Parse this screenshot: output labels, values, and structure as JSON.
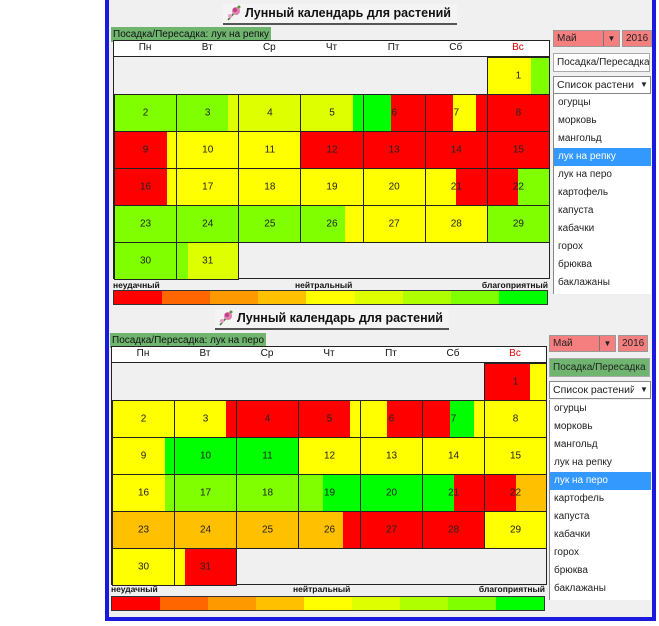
{
  "colors": {
    "R": "#ff0000",
    "Y": "#ffff00",
    "YG": "#ddff00",
    "LG": "#7fff00",
    "G": "#00ff00",
    "O": "#ffc000",
    "frame": "#1a1adf",
    "selection": "#3399ff"
  },
  "weekdays": [
    "Пн",
    "Вт",
    "Ср",
    "Чт",
    "Пт",
    "Сб",
    "Вс"
  ],
  "legend": {
    "bad": "неудачный",
    "neutral": "нейтральный",
    "good": "благоприятный",
    "scale": [
      "#ff0000",
      "#ff6600",
      "#ff9900",
      "#ffc000",
      "#ffff00",
      "#ddff00",
      "#b0ff00",
      "#7fff00",
      "#00ff00"
    ]
  },
  "plants": [
    "огурцы",
    "морковь",
    "мангольд",
    "лук на репку",
    "лук на перо",
    "картофель",
    "капуста",
    "кабачки",
    "горох",
    "брюква",
    "баклажаны"
  ],
  "panels": [
    {
      "title": "Лунный календарь для растений",
      "mode_label": "Посадка/Пересадка: лук на репку",
      "month": "Май",
      "year": "2016",
      "mode": "Посадка/Пересадка",
      "mode_active": false,
      "plant_list_label": "Список растений",
      "selected_plant": "лук на репку",
      "first_weekday": 6,
      "days": [
        [
          [
            "Y",
            0.7
          ],
          [
            "LG",
            0.3
          ]
        ],
        [
          [
            "LG",
            1
          ]
        ],
        [
          [
            "LG",
            0.83
          ],
          [
            "YG",
            0.17
          ]
        ],
        [
          [
            "YG",
            1
          ]
        ],
        [
          [
            "YG",
            0.85
          ],
          [
            "G",
            0.15
          ]
        ],
        [
          [
            "G",
            0.45
          ],
          [
            "R",
            0.55
          ]
        ],
        [
          [
            "R",
            0.45
          ],
          [
            "Y",
            0.38
          ],
          [
            "R",
            0.17
          ]
        ],
        [
          [
            "R",
            1
          ]
        ],
        [
          [
            "R",
            0.85
          ],
          [
            "Y",
            0.15
          ]
        ],
        [
          [
            "Y",
            1
          ]
        ],
        [
          [
            "Y",
            1
          ]
        ],
        [
          [
            "R",
            1
          ]
        ],
        [
          [
            "R",
            1
          ]
        ],
        [
          [
            "R",
            1
          ]
        ],
        [
          [
            "R",
            1
          ]
        ],
        [
          [
            "R",
            0.85
          ],
          [
            "Y",
            0.15
          ]
        ],
        [
          [
            "Y",
            1
          ]
        ],
        [
          [
            "Y",
            1
          ]
        ],
        [
          [
            "Y",
            1
          ]
        ],
        [
          [
            "Y",
            1
          ]
        ],
        [
          [
            "Y",
            0.5
          ],
          [
            "R",
            0.5
          ]
        ],
        [
          [
            "R",
            0.5
          ],
          [
            "LG",
            0.5
          ]
        ],
        [
          [
            "LG",
            1
          ]
        ],
        [
          [
            "LG",
            1
          ]
        ],
        [
          [
            "LG",
            1
          ]
        ],
        [
          [
            "LG",
            0.72
          ],
          [
            "Y",
            0.28
          ]
        ],
        [
          [
            "Y",
            1
          ]
        ],
        [
          [
            "Y",
            1
          ]
        ],
        [
          [
            "LG",
            1
          ]
        ],
        [
          [
            "LG",
            1
          ]
        ],
        [
          [
            "LG",
            0.17
          ],
          [
            "YG",
            0.83
          ]
        ]
      ]
    },
    {
      "title": "Лунный календарь для растений",
      "mode_label": "Посадка/Пересадка: лук на перо",
      "month": "Май",
      "year": "2016",
      "mode": "Посадка/Пересадка",
      "mode_active": true,
      "plant_list_label": "Список растений",
      "selected_plant": "лук на перо",
      "first_weekday": 6,
      "days": [
        [
          [
            "R",
            0.73
          ],
          [
            "Y",
            0.27
          ]
        ],
        [
          [
            "Y",
            1
          ]
        ],
        [
          [
            "Y",
            0.83
          ],
          [
            "R",
            0.17
          ]
        ],
        [
          [
            "R",
            1
          ]
        ],
        [
          [
            "R",
            0.83
          ],
          [
            "Y",
            0.17
          ]
        ],
        [
          [
            "Y",
            0.43
          ],
          [
            "R",
            0.57
          ]
        ],
        [
          [
            "R",
            0.45
          ],
          [
            "G",
            0.38
          ],
          [
            "Y",
            0.17
          ]
        ],
        [
          [
            "Y",
            1
          ]
        ],
        [
          [
            "Y",
            0.85
          ],
          [
            "G",
            0.15
          ]
        ],
        [
          [
            "G",
            1
          ]
        ],
        [
          [
            "G",
            1
          ]
        ],
        [
          [
            "Y",
            1
          ]
        ],
        [
          [
            "Y",
            1
          ]
        ],
        [
          [
            "Y",
            1
          ]
        ],
        [
          [
            "Y",
            1
          ]
        ],
        [
          [
            "Y",
            0.85
          ],
          [
            "LG",
            0.15
          ]
        ],
        [
          [
            "LG",
            1
          ]
        ],
        [
          [
            "LG",
            1
          ]
        ],
        [
          [
            "LG",
            0.4
          ],
          [
            "G",
            0.6
          ]
        ],
        [
          [
            "G",
            1
          ]
        ],
        [
          [
            "G",
            0.5
          ],
          [
            "R",
            0.5
          ]
        ],
        [
          [
            "R",
            0.5
          ],
          [
            "O",
            0.5
          ]
        ],
        [
          [
            "O",
            1
          ]
        ],
        [
          [
            "O",
            1
          ]
        ],
        [
          [
            "O",
            1
          ]
        ],
        [
          [
            "O",
            0.72
          ],
          [
            "R",
            0.28
          ]
        ],
        [
          [
            "R",
            1
          ]
        ],
        [
          [
            "R",
            1
          ]
        ],
        [
          [
            "Y",
            1
          ]
        ],
        [
          [
            "Y",
            1
          ]
        ],
        [
          [
            "Y",
            0.17
          ],
          [
            "R",
            0.83
          ]
        ]
      ]
    }
  ]
}
